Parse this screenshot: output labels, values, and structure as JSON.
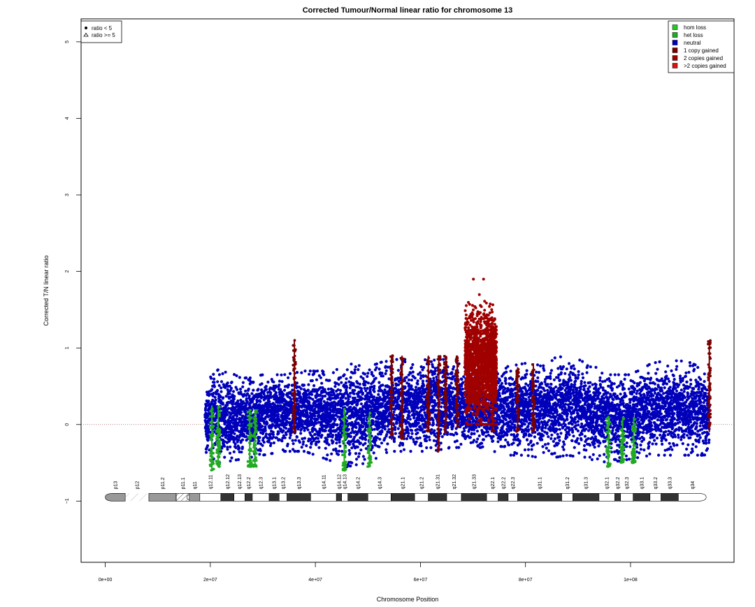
{
  "chart_data": {
    "type": "scatter",
    "title": "Corrected Tumour/Normal linear ratio for chromosome  13",
    "xlabel": "Chromosome Position",
    "ylabel": "Corrected T/N linear ratio",
    "xlim": [
      -4600000,
      119700000
    ],
    "ylim": [
      -1.8,
      5.3
    ],
    "x_ticks": [
      {
        "value": 0,
        "label": "0e+00"
      },
      {
        "value": 20000000,
        "label": "2e+07"
      },
      {
        "value": 40000000,
        "label": "4e+07"
      },
      {
        "value": 60000000,
        "label": "6e+07"
      },
      {
        "value": 80000000,
        "label": "8e+07"
      },
      {
        "value": 100000000,
        "label": "1e+08"
      }
    ],
    "y_ticks": [
      {
        "value": -1,
        "label": "−1"
      },
      {
        "value": 0,
        "label": "0"
      },
      {
        "value": 1,
        "label": "1"
      },
      {
        "value": 2,
        "label": "2"
      },
      {
        "value": 3,
        "label": "3"
      },
      {
        "value": 4,
        "label": "4"
      },
      {
        "value": 5,
        "label": "5"
      }
    ],
    "reference_line": {
      "y": 0,
      "style": "dotted",
      "color": "#a05050"
    },
    "shape_legend": {
      "placement": "top-left",
      "items": [
        {
          "symbol": "dot",
          "label": "ratio < 5"
        },
        {
          "symbol": "triangle",
          "label": "ratio >= 5"
        }
      ]
    },
    "color_legend": {
      "placement": "top-right",
      "items": [
        {
          "label": "hom loss",
          "color": "#22cc22"
        },
        {
          "label": "het loss",
          "color": "#22aa22"
        },
        {
          "label": "neutral",
          "color": "#0000bb"
        },
        {
          "label": "1 copy gained",
          "color": "#7a0000"
        },
        {
          "label": "2 copies gained",
          "color": "#a00000"
        },
        {
          "label": ">2 copies gained",
          "color": "#dd1111"
        }
      ]
    },
    "data_range_x": [
      19000000,
      115000000
    ],
    "series": [
      {
        "state": "neutral",
        "color": "#0000bb",
        "profile": [
          {
            "x": 19000000,
            "low": -0.45,
            "high": 0.55
          },
          {
            "x": 22000000,
            "low": -0.5,
            "high": 0.75
          },
          {
            "x": 26000000,
            "low": -0.45,
            "high": 0.6
          },
          {
            "x": 30000000,
            "low": -0.4,
            "high": 0.65
          },
          {
            "x": 34000000,
            "low": -0.35,
            "high": 0.65
          },
          {
            "x": 38000000,
            "low": -0.35,
            "high": 0.7
          },
          {
            "x": 42000000,
            "low": -0.45,
            "high": 0.7
          },
          {
            "x": 46000000,
            "low": -0.55,
            "high": 0.8
          },
          {
            "x": 50000000,
            "low": -0.5,
            "high": 0.75
          },
          {
            "x": 54000000,
            "low": -0.35,
            "high": 0.85
          },
          {
            "x": 58000000,
            "low": -0.35,
            "high": 0.85
          },
          {
            "x": 62000000,
            "low": -0.35,
            "high": 0.85
          },
          {
            "x": 66000000,
            "low": -0.3,
            "high": 0.85
          },
          {
            "x": 72000000,
            "low": -0.3,
            "high": 0.6
          },
          {
            "x": 76000000,
            "low": -0.4,
            "high": 0.75
          },
          {
            "x": 80000000,
            "low": -0.4,
            "high": 0.8
          },
          {
            "x": 84000000,
            "low": -0.45,
            "high": 0.85
          },
          {
            "x": 88000000,
            "low": -0.4,
            "high": 0.9
          },
          {
            "x": 92000000,
            "low": -0.45,
            "high": 0.8
          },
          {
            "x": 96000000,
            "low": -0.5,
            "high": 0.65
          },
          {
            "x": 100000000,
            "low": -0.45,
            "high": 0.65
          },
          {
            "x": 104000000,
            "low": -0.4,
            "high": 0.8
          },
          {
            "x": 108000000,
            "low": -0.4,
            "high": 0.85
          },
          {
            "x": 112000000,
            "low": -0.4,
            "high": 0.8
          },
          {
            "x": 115000000,
            "low": -0.4,
            "high": 0.6
          }
        ]
      },
      {
        "state": "het loss",
        "color": "#22aa22",
        "segments": [
          {
            "x": 20300000,
            "low": -0.6,
            "high": 0.25
          },
          {
            "x": 21500000,
            "low": -0.55,
            "high": 0.25
          },
          {
            "x": 27500000,
            "low": -0.55,
            "high": 0.2
          },
          {
            "x": 28500000,
            "low": -0.55,
            "high": 0.2
          },
          {
            "x": 45500000,
            "low": -0.6,
            "high": 0.2
          },
          {
            "x": 50300000,
            "low": -0.55,
            "high": 0.15
          },
          {
            "x": 95800000,
            "low": -0.55,
            "high": 0.1
          },
          {
            "x": 98500000,
            "low": -0.5,
            "high": 0.1
          },
          {
            "x": 100600000,
            "low": -0.5,
            "high": 0.1
          }
        ]
      },
      {
        "state": "1 copy gained",
        "color": "#7a0000",
        "segments": [
          {
            "x": 36000000,
            "low": -0.1,
            "high": 1.1
          },
          {
            "x": 54500000,
            "low": -0.2,
            "high": 0.9
          },
          {
            "x": 56500000,
            "low": -0.2,
            "high": 0.9
          },
          {
            "x": 61500000,
            "low": -0.1,
            "high": 0.9
          },
          {
            "x": 63500000,
            "low": -0.35,
            "high": 0.9
          },
          {
            "x": 64800000,
            "low": -0.1,
            "high": 0.9
          },
          {
            "x": 67000000,
            "low": -0.05,
            "high": 0.9
          },
          {
            "x": 73800000,
            "low": -0.1,
            "high": 1.3
          },
          {
            "x": 78500000,
            "low": -0.1,
            "high": 0.75
          },
          {
            "x": 81500000,
            "low": -0.1,
            "high": 0.8
          },
          {
            "x": 115000000,
            "low": -0.1,
            "high": 1.1
          }
        ]
      },
      {
        "state": "2 copies gained",
        "color": "#a00000",
        "region": {
          "x_start": 68500000,
          "x_end": 74500000,
          "low": 0.0,
          "high": 1.9
        }
      }
    ],
    "ideogram": {
      "y": -0.95,
      "bands": [
        {
          "name": "p13",
          "start": 0,
          "end": 3800000,
          "stain": "gvar"
        },
        {
          "name": "p12",
          "start": 3800000,
          "end": 8300000,
          "stain": "stalk"
        },
        {
          "name": "p11.2",
          "start": 8300000,
          "end": 13500000,
          "stain": "gvar"
        },
        {
          "name": "p11.1",
          "start": 13500000,
          "end": 16000000,
          "stain": "acen"
        },
        {
          "name": "q11",
          "start": 16000000,
          "end": 18000000,
          "stain": "gvar"
        },
        {
          "name": "q12.11",
          "start": 18000000,
          "end": 22000000,
          "stain": "gneg"
        },
        {
          "name": "q12.12",
          "start": 22000000,
          "end": 24500000,
          "stain": "gpos"
        },
        {
          "name": "q12.13",
          "start": 24500000,
          "end": 26600000,
          "stain": "gneg"
        },
        {
          "name": "q12.2",
          "start": 26600000,
          "end": 28000000,
          "stain": "gpos"
        },
        {
          "name": "q12.3",
          "start": 28000000,
          "end": 31200000,
          "stain": "gneg"
        },
        {
          "name": "q13.1",
          "start": 31200000,
          "end": 33100000,
          "stain": "gpos"
        },
        {
          "name": "q13.2",
          "start": 33100000,
          "end": 34600000,
          "stain": "gneg"
        },
        {
          "name": "q13.3",
          "start": 34600000,
          "end": 39100000,
          "stain": "gpos"
        },
        {
          "name": "q14.11",
          "start": 39100000,
          "end": 44000000,
          "stain": "gneg"
        },
        {
          "name": "q14.12",
          "start": 44000000,
          "end": 45000000,
          "stain": "gpos"
        },
        {
          "name": "q14.13",
          "start": 45000000,
          "end": 46200000,
          "stain": "gneg"
        },
        {
          "name": "q14.2",
          "start": 46200000,
          "end": 50000000,
          "stain": "gpos"
        },
        {
          "name": "q14.3",
          "start": 50000000,
          "end": 54400000,
          "stain": "gneg"
        },
        {
          "name": "q21.1",
          "start": 54400000,
          "end": 58900000,
          "stain": "gpos"
        },
        {
          "name": "q21.2",
          "start": 58900000,
          "end": 61500000,
          "stain": "gneg"
        },
        {
          "name": "q21.31",
          "start": 61500000,
          "end": 65000000,
          "stain": "gpos"
        },
        {
          "name": "q21.32",
          "start": 65000000,
          "end": 67800000,
          "stain": "gneg"
        },
        {
          "name": "q21.33",
          "start": 67800000,
          "end": 72600000,
          "stain": "gpos"
        },
        {
          "name": "q22.1",
          "start": 72600000,
          "end": 74800000,
          "stain": "gneg"
        },
        {
          "name": "q22.2",
          "start": 74800000,
          "end": 76700000,
          "stain": "gpos"
        },
        {
          "name": "q22.3",
          "start": 76700000,
          "end": 78500000,
          "stain": "gneg"
        },
        {
          "name": "q31.1",
          "start": 78500000,
          "end": 86900000,
          "stain": "gpos"
        },
        {
          "name": "q31.2",
          "start": 86900000,
          "end": 89000000,
          "stain": "gneg"
        },
        {
          "name": "q31.3",
          "start": 89000000,
          "end": 94000000,
          "stain": "gpos"
        },
        {
          "name": "q32.1",
          "start": 94000000,
          "end": 97000000,
          "stain": "gneg"
        },
        {
          "name": "q32.2",
          "start": 97000000,
          "end": 98100000,
          "stain": "gpos"
        },
        {
          "name": "q32.3",
          "start": 98100000,
          "end": 100500000,
          "stain": "gneg"
        },
        {
          "name": "q33.1",
          "start": 100500000,
          "end": 103700000,
          "stain": "gpos"
        },
        {
          "name": "q33.2",
          "start": 103700000,
          "end": 105800000,
          "stain": "gneg"
        },
        {
          "name": "q33.3",
          "start": 105800000,
          "end": 109100000,
          "stain": "gpos"
        },
        {
          "name": "q34",
          "start": 109100000,
          "end": 114400000,
          "stain": "gneg"
        }
      ]
    }
  }
}
